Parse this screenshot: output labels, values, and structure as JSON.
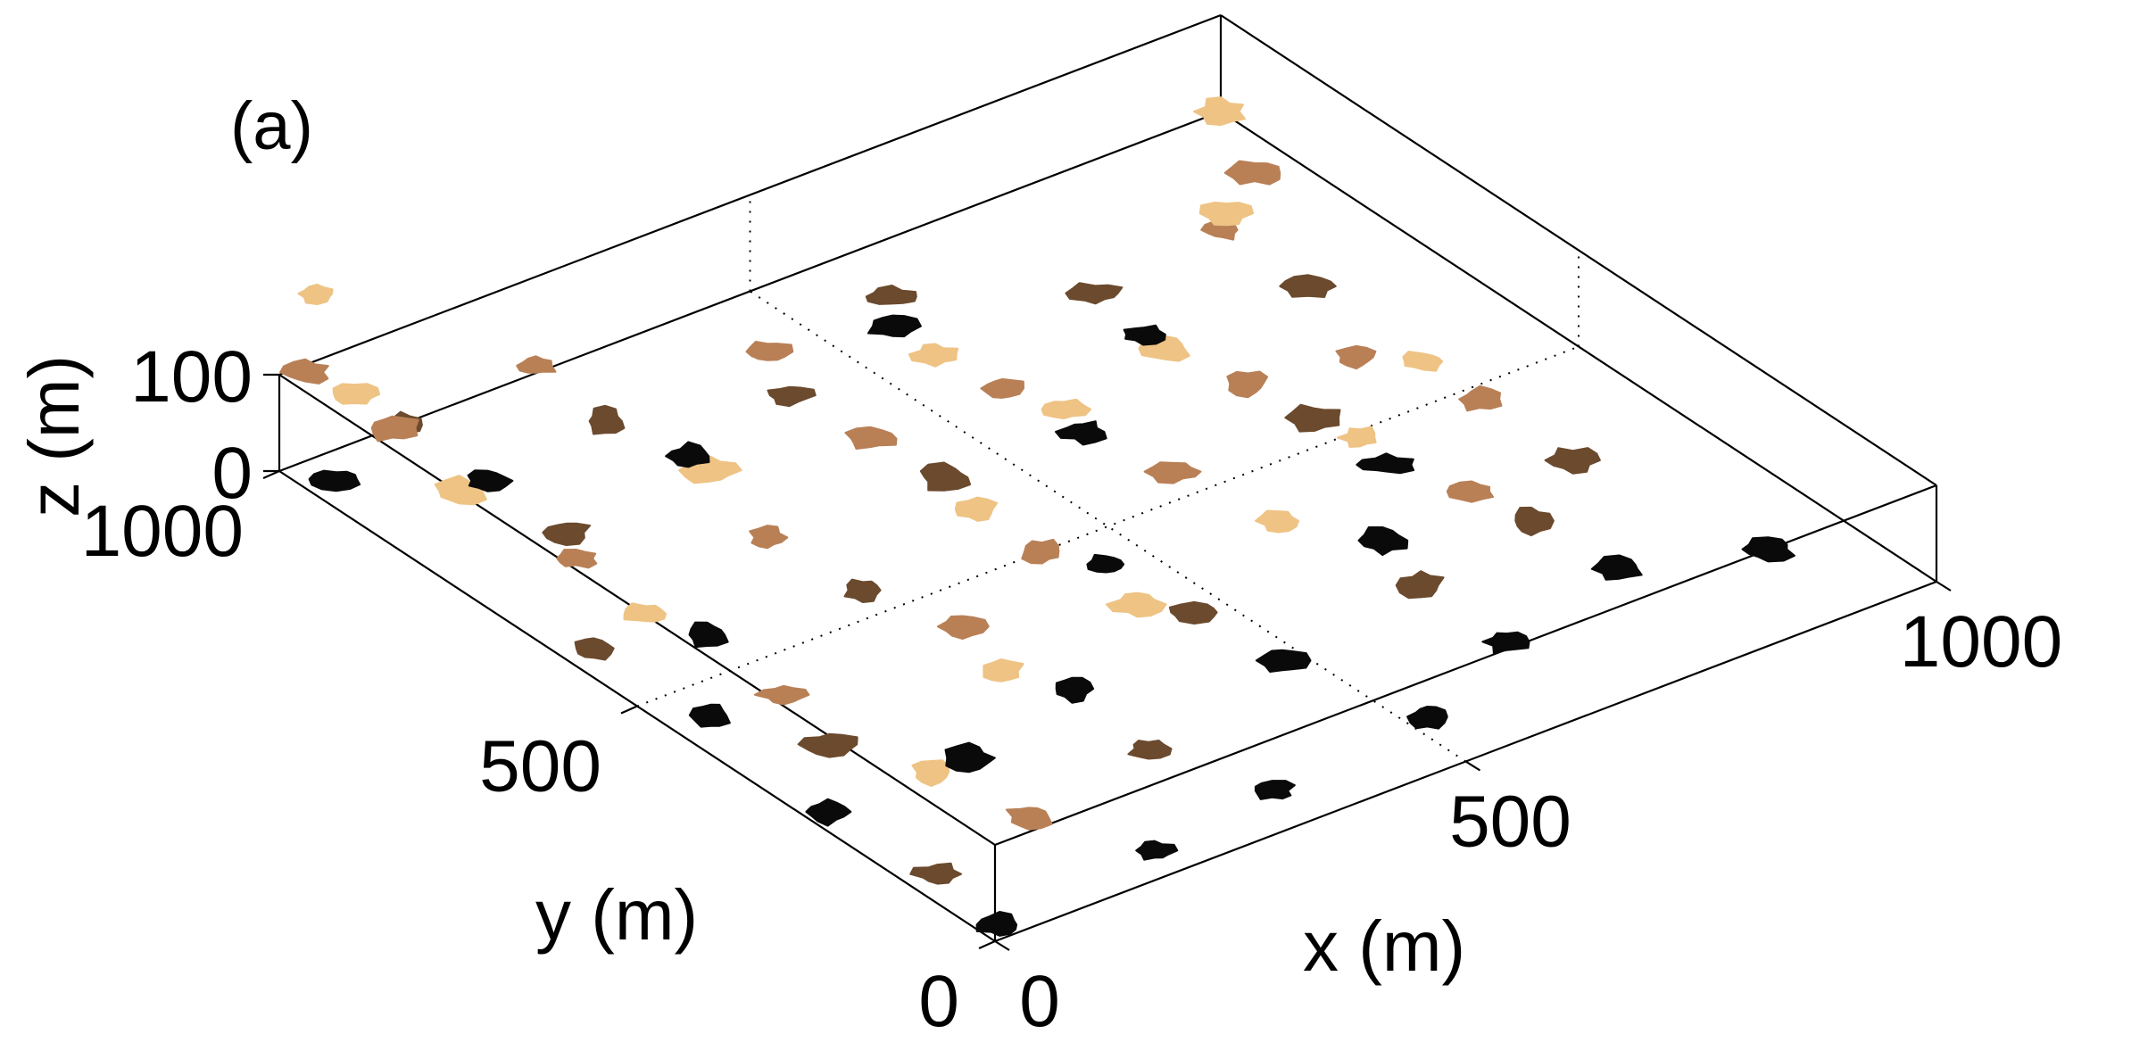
{
  "chart_data": {
    "type": "scatter",
    "panel_label": "(a)",
    "xlabel": "x (m)",
    "ylabel": "y (m)",
    "zlabel": "z (m)",
    "xlim": [
      0,
      1000
    ],
    "ylim": [
      0,
      1000
    ],
    "zlim": [
      0,
      100
    ],
    "x_ticks": [
      0,
      500,
      1000
    ],
    "y_ticks": [
      0,
      500,
      1000
    ],
    "z_ticks": [
      0,
      100
    ],
    "grid": true,
    "colors": {
      "black": "#0a0a0a",
      "dark_brown": "#6b4a2e",
      "medium_brown": "#b98056",
      "tan": "#eec384"
    },
    "clusters": [
      {
        "x": 20,
        "y": 20,
        "z": 0,
        "color": "black"
      },
      {
        "x": 30,
        "y": 120,
        "z": 0,
        "color": "dark_brown"
      },
      {
        "x": 20,
        "y": 260,
        "z": 0,
        "color": "black"
      },
      {
        "x": 40,
        "y": 450,
        "z": 0,
        "color": "black"
      },
      {
        "x": 30,
        "y": 600,
        "z": 0,
        "color": "dark_brown"
      },
      {
        "x": 30,
        "y": 960,
        "z": 0,
        "color": "black"
      },
      {
        "x": 30,
        "y": 870,
        "z": 100,
        "color": "dark_brown"
      },
      {
        "x": 20,
        "y": 990,
        "z": 100,
        "color": "medium_brown"
      },
      {
        "x": 10,
        "y": 960,
        "z": 200,
        "color": "tan"
      },
      {
        "x": 200,
        "y": 40,
        "z": 0,
        "color": "black"
      },
      {
        "x": 150,
        "y": 150,
        "z": 0,
        "color": "medium_brown"
      },
      {
        "x": 130,
        "y": 260,
        "z": 0,
        "color": "tan"
      },
      {
        "x": 170,
        "y": 260,
        "z": 0,
        "color": "black"
      },
      {
        "x": 90,
        "y": 350,
        "z": 0,
        "color": "dark_brown"
      },
      {
        "x": 110,
        "y": 440,
        "z": 0,
        "color": "medium_brown"
      },
      {
        "x": 120,
        "y": 560,
        "z": 0,
        "color": "black"
      },
      {
        "x": 100,
        "y": 620,
        "z": 0,
        "color": "tan"
      },
      {
        "x": 110,
        "y": 730,
        "z": 0,
        "color": "medium_brown"
      },
      {
        "x": 100,
        "y": 880,
        "z": 0,
        "color": "tan"
      },
      {
        "x": 130,
        "y": 880,
        "z": 0,
        "color": "black"
      },
      {
        "x": 130,
        "y": 770,
        "z": 0,
        "color": "dark_brown"
      },
      {
        "x": 120,
        "y": 1000,
        "z": 0,
        "color": "medium_brown"
      },
      {
        "x": 80,
        "y": 1000,
        "z": 50,
        "color": "tan"
      },
      {
        "x": 340,
        "y": 60,
        "z": 0,
        "color": "black"
      },
      {
        "x": 300,
        "y": 180,
        "z": 0,
        "color": "dark_brown"
      },
      {
        "x": 310,
        "y": 300,
        "z": 0,
        "color": "black"
      },
      {
        "x": 280,
        "y": 360,
        "z": 0,
        "color": "tan"
      },
      {
        "x": 300,
        "y": 440,
        "z": 0,
        "color": "medium_brown"
      },
      {
        "x": 270,
        "y": 540,
        "z": 0,
        "color": "dark_brown"
      },
      {
        "x": 260,
        "y": 660,
        "z": 0,
        "color": "medium_brown"
      },
      {
        "x": 290,
        "y": 780,
        "z": 0,
        "color": "tan"
      },
      {
        "x": 290,
        "y": 810,
        "z": 0,
        "color": "black"
      },
      {
        "x": 270,
        "y": 900,
        "z": 0,
        "color": "dark_brown"
      },
      {
        "x": 280,
        "y": 1010,
        "z": 0,
        "color": "medium_brown"
      },
      {
        "x": 520,
        "y": 80,
        "z": 0,
        "color": "black"
      },
      {
        "x": 480,
        "y": 230,
        "z": 0,
        "color": "black"
      },
      {
        "x": 470,
        "y": 340,
        "z": 0,
        "color": "dark_brown"
      },
      {
        "x": 440,
        "y": 380,
        "z": 0,
        "color": "tan"
      },
      {
        "x": 460,
        "y": 450,
        "z": 0,
        "color": "black"
      },
      {
        "x": 430,
        "y": 500,
        "z": 0,
        "color": "medium_brown"
      },
      {
        "x": 430,
        "y": 590,
        "z": 0,
        "color": "tan"
      },
      {
        "x": 440,
        "y": 650,
        "z": 0,
        "color": "dark_brown"
      },
      {
        "x": 430,
        "y": 740,
        "z": 0,
        "color": "medium_brown"
      },
      {
        "x": 420,
        "y": 840,
        "z": 0,
        "color": "dark_brown"
      },
      {
        "x": 450,
        "y": 910,
        "z": 0,
        "color": "medium_brown"
      },
      {
        "x": 650,
        "y": 140,
        "z": 0,
        "color": "black"
      },
      {
        "x": 650,
        "y": 260,
        "z": 0,
        "color": "dark_brown"
      },
      {
        "x": 670,
        "y": 340,
        "z": 0,
        "color": "black"
      },
      {
        "x": 620,
        "y": 420,
        "z": 0,
        "color": "tan"
      },
      {
        "x": 600,
        "y": 540,
        "z": 0,
        "color": "medium_brown"
      },
      {
        "x": 580,
        "y": 640,
        "z": 0,
        "color": "black"
      },
      {
        "x": 590,
        "y": 680,
        "z": 0,
        "color": "tan"
      },
      {
        "x": 570,
        "y": 740,
        "z": 0,
        "color": "medium_brown"
      },
      {
        "x": 560,
        "y": 820,
        "z": 0,
        "color": "tan"
      },
      {
        "x": 560,
        "y": 880,
        "z": 0,
        "color": "black"
      },
      {
        "x": 590,
        "y": 920,
        "z": 0,
        "color": "dark_brown"
      },
      {
        "x": 800,
        "y": 180,
        "z": 0,
        "color": "black"
      },
      {
        "x": 790,
        "y": 290,
        "z": 0,
        "color": "dark_brown"
      },
      {
        "x": 780,
        "y": 360,
        "z": 0,
        "color": "medium_brown"
      },
      {
        "x": 750,
        "y": 440,
        "z": 0,
        "color": "black"
      },
      {
        "x": 760,
        "y": 490,
        "z": 0,
        "color": "tan"
      },
      {
        "x": 750,
        "y": 540,
        "z": 0,
        "color": "dark_brown"
      },
      {
        "x": 740,
        "y": 620,
        "z": 0,
        "color": "medium_brown"
      },
      {
        "x": 720,
        "y": 710,
        "z": 0,
        "color": "tan"
      },
      {
        "x": 720,
        "y": 740,
        "z": 0,
        "color": "black"
      },
      {
        "x": 730,
        "y": 820,
        "z": 0,
        "color": "dark_brown"
      },
      {
        "x": 920,
        "y": 130,
        "z": 0,
        "color": "black"
      },
      {
        "x": 880,
        "y": 350,
        "z": 0,
        "color": "dark_brown"
      },
      {
        "x": 880,
        "y": 480,
        "z": 0,
        "color": "medium_brown"
      },
      {
        "x": 880,
        "y": 560,
        "z": 0,
        "color": "tan"
      },
      {
        "x": 840,
        "y": 600,
        "z": 0,
        "color": "medium_brown"
      },
      {
        "x": 880,
        "y": 720,
        "z": 0,
        "color": "dark_brown"
      },
      {
        "x": 880,
        "y": 840,
        "z": 0,
        "color": "medium_brown"
      },
      {
        "x": 900,
        "y": 860,
        "z": 0,
        "color": "tan"
      },
      {
        "x": 960,
        "y": 900,
        "z": 0,
        "color": "medium_brown"
      },
      {
        "x": 1000,
        "y": 1000,
        "z": 0,
        "color": "tan"
      }
    ]
  }
}
